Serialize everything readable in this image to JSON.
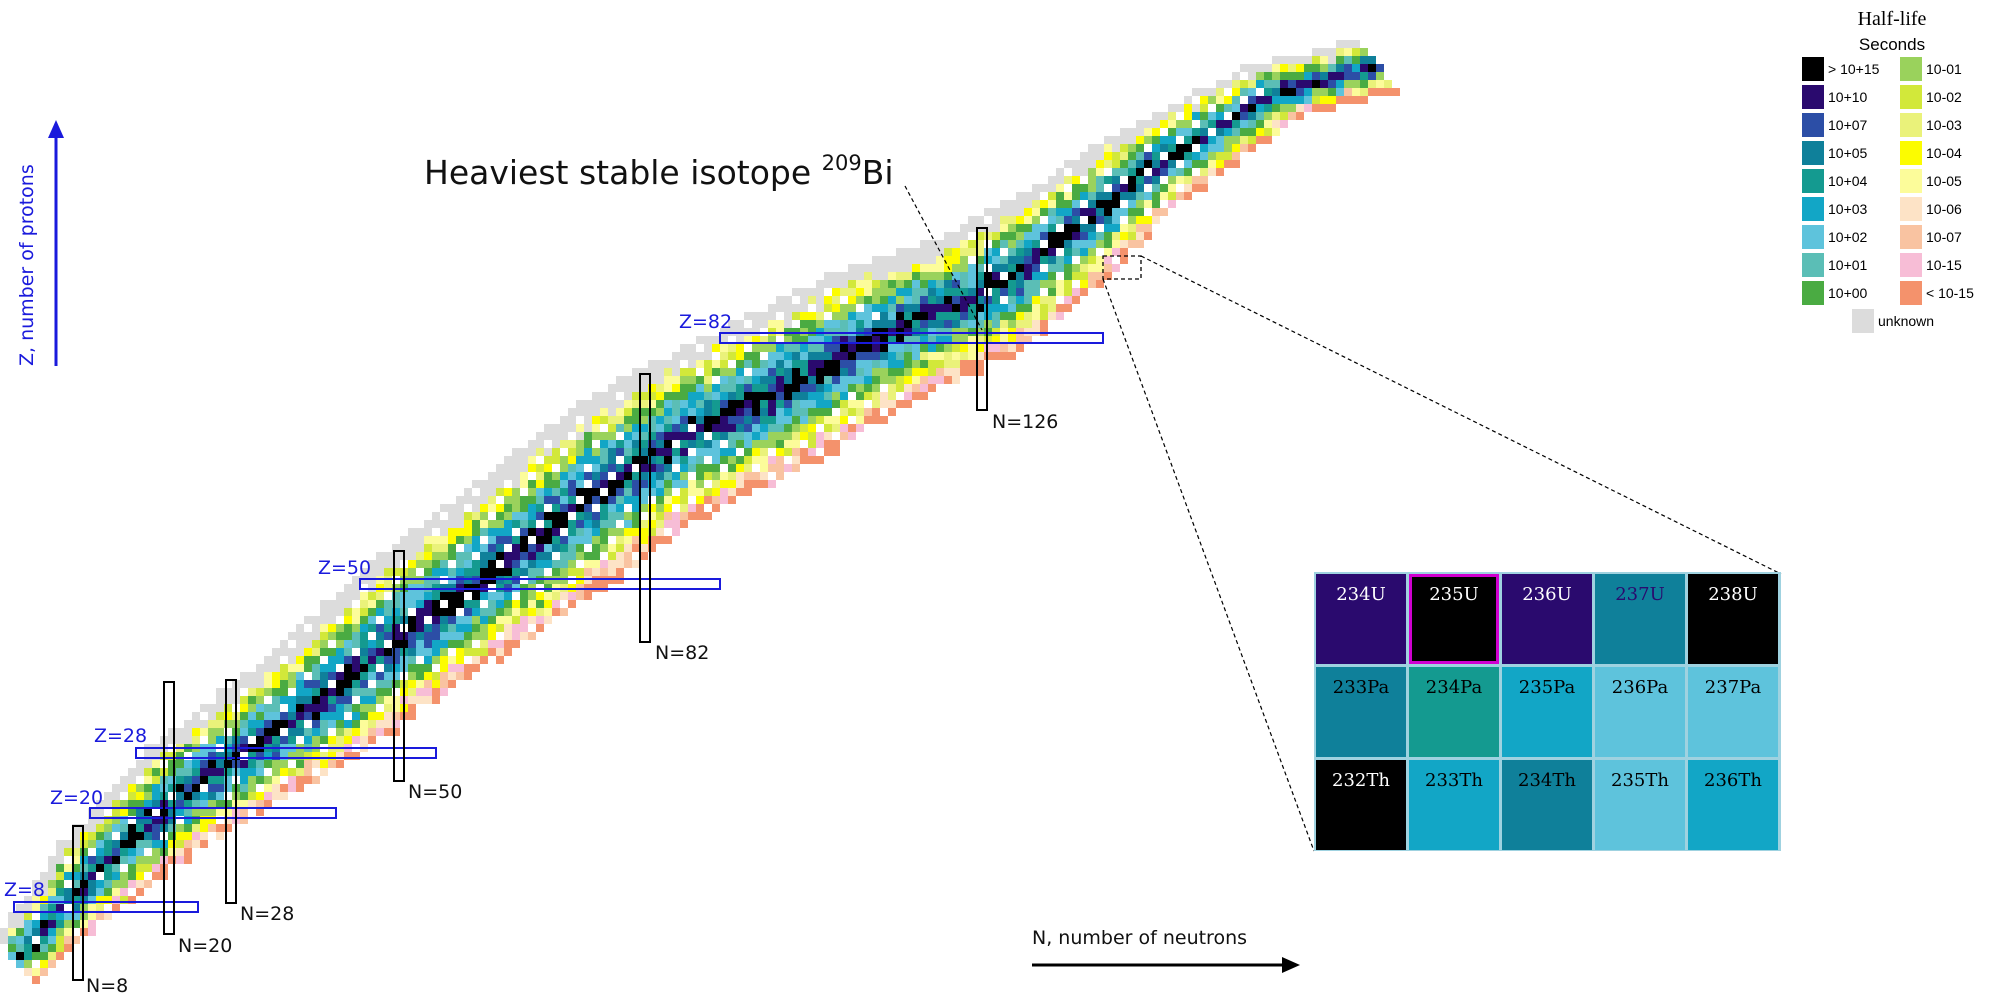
{
  "annotation": {
    "text": "Heaviest stable isotope ",
    "sup": "209",
    "element": "Bi"
  },
  "axes": {
    "y_label": "Z, number of protons",
    "x_label": "N, number of neutrons"
  },
  "magic": {
    "Z": [
      "Z=8",
      "Z=20",
      "Z=28",
      "Z=50",
      "Z=82"
    ],
    "N": [
      "N=8",
      "N=20",
      "N=28",
      "N=50",
      "N=82",
      "N=126"
    ]
  },
  "legend": {
    "title": "Half-life",
    "subtitle": "Seconds",
    "left": [
      {
        "label": "> 10+15",
        "color": "#000000"
      },
      {
        "label": "10+10",
        "color": "#2a0a6e"
      },
      {
        "label": "10+07",
        "color": "#2c4ea6"
      },
      {
        "label": "10+05",
        "color": "#0f809a"
      },
      {
        "label": "10+04",
        "color": "#149a90"
      },
      {
        "label": "10+03",
        "color": "#12a6c6"
      },
      {
        "label": "10+02",
        "color": "#5ec3dc"
      },
      {
        "label": "10+01",
        "color": "#5bbeb6"
      },
      {
        "label": "10+00",
        "color": "#4aab42"
      }
    ],
    "right": [
      {
        "label": "10-01",
        "color": "#9ad25c"
      },
      {
        "label": "10-02",
        "color": "#d2e83a"
      },
      {
        "label": "10-03",
        "color": "#eaf27a"
      },
      {
        "label": "10-04",
        "color": "#fcfc00"
      },
      {
        "label": "10-05",
        "color": "#fcfc9a"
      },
      {
        "label": "10-06",
        "color": "#fde3c6"
      },
      {
        "label": "10-07",
        "color": "#f9c3a1"
      },
      {
        "label": "10-15",
        "color": "#f7bdd6"
      },
      {
        "label": "< 10-15",
        "color": "#f4926c"
      }
    ],
    "unknown": {
      "label": "unknown",
      "color": "#dcdcdc"
    }
  },
  "zoom": {
    "rows": [
      [
        {
          "label": "234U",
          "color": "#2a0a6e",
          "text": "#ffffff"
        },
        {
          "label": "235U",
          "color": "#000000",
          "text": "#ffffff",
          "selected": true
        },
        {
          "label": "236U",
          "color": "#2a0a6e",
          "text": "#ffffff"
        },
        {
          "label": "237U",
          "color": "#0f809a",
          "text": "#2a0a6e"
        },
        {
          "label": "238U",
          "color": "#000000",
          "text": "#ffffff"
        }
      ],
      [
        {
          "label": "233Pa",
          "color": "#0f809a",
          "text": "#000000"
        },
        {
          "label": "234Pa",
          "color": "#149a90",
          "text": "#000000"
        },
        {
          "label": "235Pa",
          "color": "#12a6c6",
          "text": "#000000"
        },
        {
          "label": "236Pa",
          "color": "#5ec3dc",
          "text": "#000000"
        },
        {
          "label": "237Pa",
          "color": "#5ec3dc",
          "text": "#000000"
        }
      ],
      [
        {
          "label": "232Th",
          "color": "#000000",
          "text": "#ffffff"
        },
        {
          "label": "233Th",
          "color": "#12a6c6",
          "text": "#000000"
        },
        {
          "label": "234Th",
          "color": "#0f809a",
          "text": "#000000"
        },
        {
          "label": "235Th",
          "color": "#5ec3dc",
          "text": "#000000"
        },
        {
          "label": "236Th",
          "color": "#12a6c6",
          "text": "#000000"
        }
      ]
    ]
  }
}
